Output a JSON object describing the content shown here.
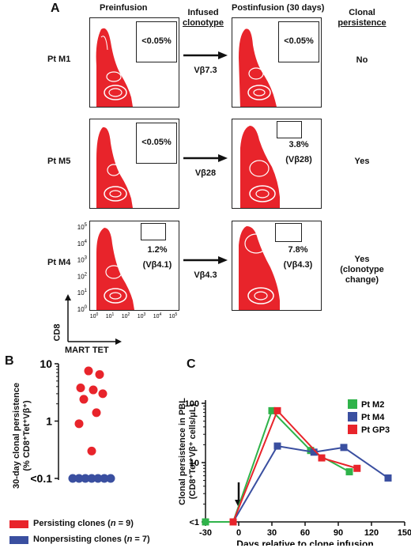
{
  "panelA": {
    "letter": "A",
    "headers": {
      "pre": "Preinfusion",
      "infused": [
        "Infused",
        "clonotype"
      ],
      "post": "Postinfusion (30 days)",
      "persist": [
        "Clonal",
        "persistence"
      ]
    },
    "rows": [
      {
        "patient": "Pt M1",
        "pre": [
          "<0.05%"
        ],
        "clonotype": "Vβ7.3",
        "post": [
          "<0.05%"
        ],
        "persistence": [
          "No"
        ]
      },
      {
        "patient": "Pt M5",
        "pre": [
          "<0.05%"
        ],
        "clonotype": "Vβ28",
        "post": [
          "3.8%",
          "(Vβ28)"
        ],
        "persistence": [
          "Yes"
        ]
      },
      {
        "patient": "Pt M4",
        "pre": [
          "1.2%",
          "(Vβ4.1)"
        ],
        "clonotype": "Vβ4.3",
        "post": [
          "7.8%",
          "(Vβ4.3)"
        ],
        "persistence": [
          "Yes",
          "(clonotype",
          "change)"
        ]
      }
    ],
    "axes": {
      "y": "CD8",
      "x": "MART TET"
    },
    "tick_exponents": [
      "0",
      "1",
      "2",
      "3",
      "4",
      "5"
    ],
    "tick_base": "10",
    "colors": {
      "contour": "#e8242b"
    }
  },
  "chart_data": [
    {
      "type": "scatter",
      "letter": "B",
      "ylabel": [
        "30-day clonal persistence",
        "(% CD8⁺Tet⁺Vβ⁺)"
      ],
      "yscale": "log",
      "ylim": [
        0.1,
        10
      ],
      "ytick_labels": [
        "<0.1",
        "1",
        "10"
      ],
      "series": [
        {
          "name": "Persisting clones",
          "n": "9",
          "color": "#e8242b",
          "values": [
            7.5,
            6.5,
            3.8,
            3.5,
            3.0,
            2.4,
            1.4,
            0.9,
            0.3
          ]
        },
        {
          "name": "Nonpersisting clones",
          "n": "7",
          "color": "#3a4fa0",
          "values": [
            0.1,
            0.1,
            0.1,
            0.1,
            0.1,
            0.1,
            0.1
          ]
        }
      ],
      "legend_position": "bottom"
    },
    {
      "type": "line",
      "letter": "C",
      "ylabel": [
        "Clonal persistence in PBL",
        "(CD8⁺Tet⁺Vβ⁺ cells/μL)"
      ],
      "xlabel": "Days relative to clone infusion",
      "yscale": "log",
      "ylim": [
        1,
        100
      ],
      "xlim": [
        -30,
        150
      ],
      "ytick_labels": [
        "<1",
        "10",
        "100"
      ],
      "xtick_labels": [
        "-30",
        "0",
        "30",
        "60",
        "90",
        "120",
        "150"
      ],
      "annotation": "arrow at day 0",
      "series": [
        {
          "name": "Pt M2",
          "color": "#2fb34a",
          "x": [
            -30,
            -5,
            30,
            65,
            100
          ],
          "y": [
            1,
            1,
            75,
            16,
            7
          ]
        },
        {
          "name": "Pt M4",
          "color": "#3a4fa0",
          "x": [
            -5,
            35,
            68,
            95,
            135
          ],
          "y": [
            1,
            19,
            15,
            18,
            5.5
          ]
        },
        {
          "name": "Pt GP3",
          "color": "#e8242b",
          "x": [
            -5,
            35,
            75,
            107
          ],
          "y": [
            1,
            75,
            12,
            8
          ]
        }
      ],
      "legend_position": "top-right"
    }
  ]
}
